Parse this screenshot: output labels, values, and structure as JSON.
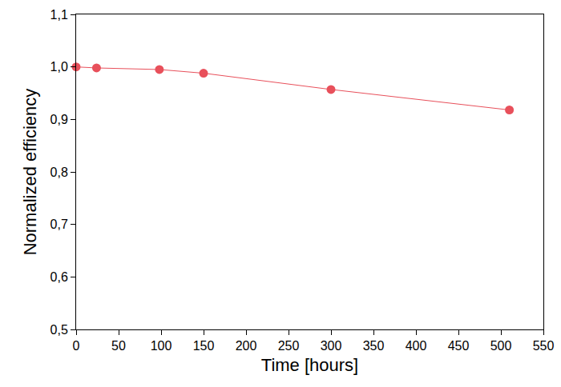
{
  "chart_data": {
    "type": "line",
    "x": [
      0,
      24,
      98,
      150,
      300,
      510
    ],
    "values": [
      1.0,
      0.998,
      0.995,
      0.988,
      0.957,
      0.918
    ],
    "color": "#e8505b",
    "marker": "circle",
    "line_style": "solid",
    "x_label": "Time [hours]",
    "y_label": "Normalized efficiency",
    "xlim": [
      0,
      550
    ],
    "xticks": [
      0,
      50,
      100,
      150,
      200,
      250,
      300,
      350,
      400,
      450,
      500,
      550
    ],
    "ylim": [
      0.5,
      1.1
    ],
    "yticks": [
      {
        "value": 0.5,
        "label": "0,5"
      },
      {
        "value": 0.6,
        "label": "0,6"
      },
      {
        "value": 0.7,
        "label": "0,7"
      },
      {
        "value": 0.8,
        "label": "0,8"
      },
      {
        "value": 0.9,
        "label": "0,9"
      },
      {
        "value": 1.0,
        "label": "1,0"
      },
      {
        "value": 1.1,
        "label": "1,1"
      }
    ],
    "grid": false
  }
}
